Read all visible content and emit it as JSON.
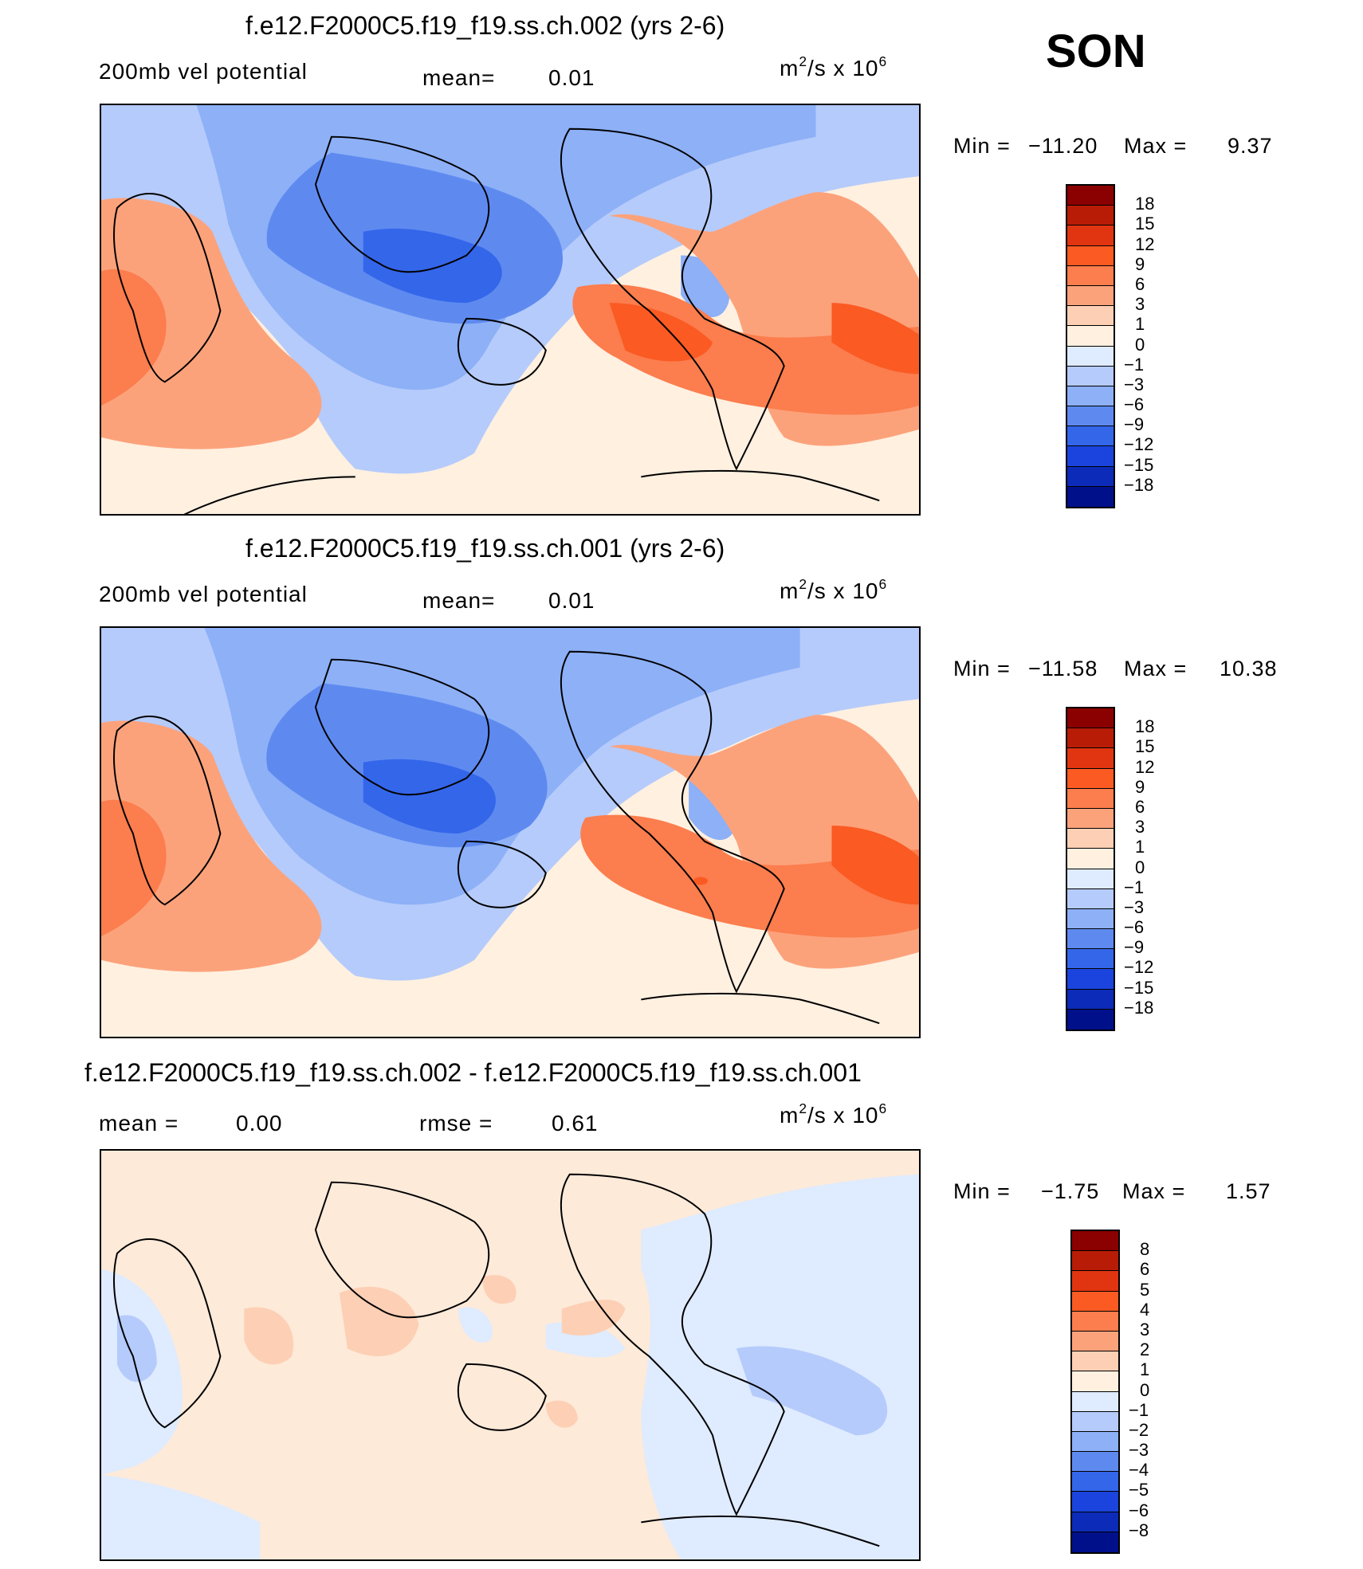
{
  "season": "SON",
  "units": {
    "base": "m",
    "exp": "2",
    "rest": "/s  x  10",
    "pow": "6"
  },
  "panels": [
    {
      "id": "top",
      "title": "f.e12.F2000C5.f19_f19.ss.ch.002 (yrs 2-6)",
      "field_label": "200mb vel potential",
      "stat1_label": "mean=",
      "stat1_value": "0.01",
      "stat2_label": "",
      "stat2_value": "",
      "min_label": "Min  =",
      "min_value": "−11.20",
      "max_label": "Max  =",
      "max_value": "9.37",
      "colorbar": {
        "labels": [
          "18",
          "15",
          "12",
          "9",
          "6",
          "3",
          "1",
          "0",
          "−1",
          "−3",
          "−6",
          "−9",
          "−12",
          "−15",
          "−18"
        ],
        "colors": [
          "#8b0000",
          "#b81c06",
          "#e03510",
          "#fb5a23",
          "#fc7d4d",
          "#fca27b",
          "#fdcfb4",
          "#fff0e0",
          "#dfebff",
          "#b5cbfb",
          "#8db0f7",
          "#5e8af0",
          "#3466ea",
          "#1a44dd",
          "#0c2bb8",
          "#00108a"
        ]
      }
    },
    {
      "id": "middle",
      "title": "f.e12.F2000C5.f19_f19.ss.ch.001 (yrs 2-6)",
      "field_label": "200mb vel potential",
      "stat1_label": "mean=",
      "stat1_value": "0.01",
      "stat2_label": "",
      "stat2_value": "",
      "min_label": "Min  =",
      "min_value": "−11.58",
      "max_label": "Max  =",
      "max_value": "10.38",
      "colorbar": {
        "labels": [
          "18",
          "15",
          "12",
          "9",
          "6",
          "3",
          "1",
          "0",
          "−1",
          "−3",
          "−6",
          "−9",
          "−12",
          "−15",
          "−18"
        ],
        "colors": [
          "#8b0000",
          "#b81c06",
          "#e03510",
          "#fb5a23",
          "#fc7d4d",
          "#fca27b",
          "#fdcfb4",
          "#fff0e0",
          "#dfebff",
          "#b5cbfb",
          "#8db0f7",
          "#5e8af0",
          "#3466ea",
          "#1a44dd",
          "#0c2bb8",
          "#00108a"
        ]
      }
    },
    {
      "id": "bottom",
      "title": "f.e12.F2000C5.f19_f19.ss.ch.002 - f.e12.F2000C5.f19_f19.ss.ch.001",
      "field_label": "",
      "stat1_label": "mean  =",
      "stat1_value": "0.00",
      "stat2_label": "rmse  =",
      "stat2_value": "0.61",
      "min_label": "Min  =",
      "min_value": "−1.75",
      "max_label": "Max  =",
      "max_value": "1.57",
      "colorbar": {
        "labels": [
          "8",
          "6",
          "5",
          "4",
          "3",
          "2",
          "1",
          "0",
          "−1",
          "−2",
          "−3",
          "−4",
          "−5",
          "−6",
          "−8"
        ],
        "colors": [
          "#8b0000",
          "#b81c06",
          "#e03510",
          "#fb5a23",
          "#fc7d4d",
          "#fca27b",
          "#fdcfb4",
          "#fff0e0",
          "#dfebff",
          "#b5cbfb",
          "#8db0f7",
          "#5e8af0",
          "#3466ea",
          "#1a44dd",
          "#0c2bb8",
          "#00108a"
        ]
      }
    }
  ]
}
